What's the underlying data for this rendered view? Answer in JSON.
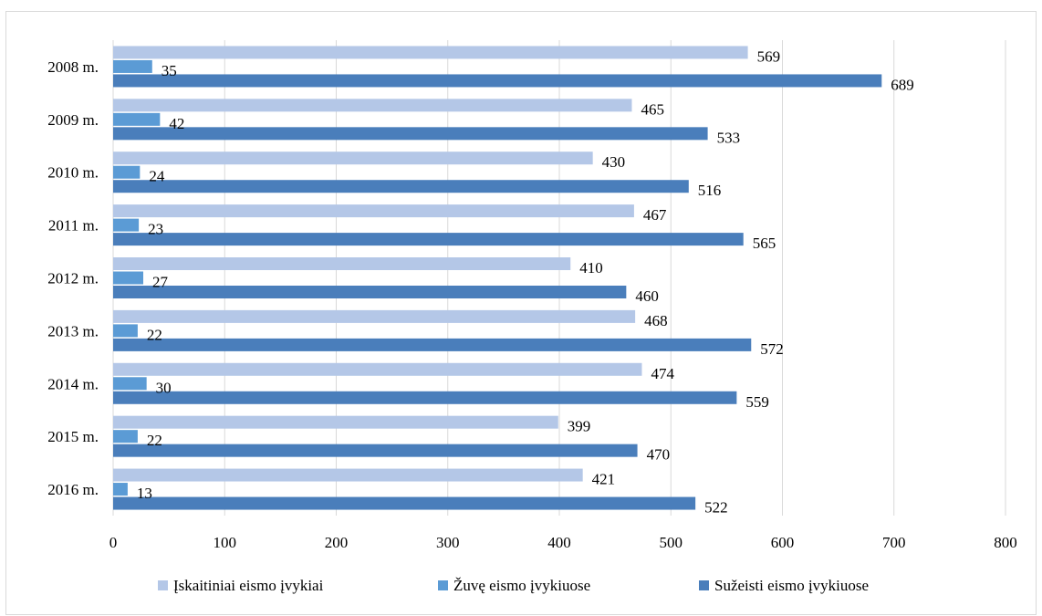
{
  "chart_data": {
    "type": "bar",
    "orientation": "horizontal",
    "categories": [
      "2008 m.",
      "2009 m.",
      "2010 m.",
      "2011 m.",
      "2012 m.",
      "2013 m.",
      "2014 m.",
      "2015 m.",
      "2016 m."
    ],
    "series": [
      {
        "name": "Įskaitiniai eismo įvykiai",
        "color": "#b4c7e7",
        "values": [
          569,
          465,
          430,
          467,
          410,
          468,
          474,
          399,
          421
        ]
      },
      {
        "name": "Žuvę eismo įvykiuose",
        "color": "#5b9bd5",
        "values": [
          35,
          42,
          24,
          23,
          27,
          22,
          30,
          22,
          13
        ]
      },
      {
        "name": "Sužeisti eismo įvykiuose",
        "color": "#4a7ebb",
        "values": [
          689,
          533,
          516,
          565,
          460,
          572,
          559,
          470,
          522
        ]
      }
    ],
    "xlim": [
      0,
      800
    ],
    "xticks": [
      "0",
      "100",
      "200",
      "300",
      "400",
      "500",
      "600",
      "700",
      "800"
    ],
    "xtick_values": [
      0,
      100,
      200,
      300,
      400,
      500,
      600,
      700,
      800
    ],
    "grid": "vertical",
    "legend_position": "bottom",
    "title": "",
    "xlabel": "",
    "ylabel": ""
  }
}
